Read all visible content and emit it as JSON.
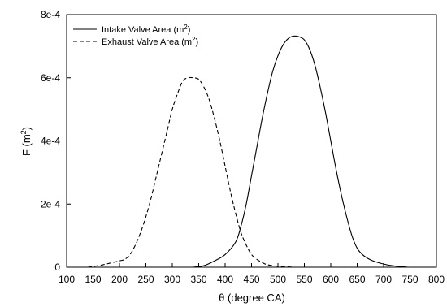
{
  "chart_data": {
    "type": "line",
    "xlabel": "θ (degree CA)",
    "ylabel": {
      "base": "F (m",
      "sup": "2",
      "end": ")"
    },
    "xlim": [
      100,
      800
    ],
    "ylim": [
      0,
      0.0008
    ],
    "xticks": [
      100,
      150,
      200,
      250,
      300,
      350,
      400,
      450,
      500,
      550,
      600,
      650,
      700,
      750,
      800
    ],
    "xtick_labels": [
      "100",
      "150",
      "200",
      "250",
      "300",
      "350",
      "400",
      "450",
      "500",
      "550",
      "600",
      "650",
      "700",
      "750",
      "800"
    ],
    "yticks": [
      0,
      0.0002,
      0.0004,
      0.0006,
      0.0008
    ],
    "ytick_labels": [
      "0",
      "2e-4",
      "4e-4",
      "6e-4",
      "8e-4"
    ],
    "grid": false,
    "legend_position": "top-left",
    "series": [
      {
        "name": {
          "base": "Intake Valve Area (m",
          "sup": "2",
          "end": ")"
        },
        "line_style": "solid",
        "color": "#000000",
        "x": [
          340,
          360,
          380,
          400,
          420,
          430,
          440,
          450,
          460,
          470,
          480,
          490,
          500,
          510,
          520,
          530,
          540,
          550,
          560,
          570,
          580,
          590,
          600,
          610,
          620,
          630,
          640,
          650,
          660,
          670,
          680,
          700,
          720,
          745
        ],
        "y": [
          0,
          5e-06,
          2e-05,
          4e-05,
          8e-05,
          0.00013,
          0.0002,
          0.00029,
          0.00038,
          0.00047,
          0.00055,
          0.00062,
          0.00067,
          0.000705,
          0.000725,
          0.000732,
          0.00073,
          0.00072,
          0.00069,
          0.00064,
          0.00057,
          0.00049,
          0.0004,
          0.00031,
          0.00023,
          0.00016,
          0.0001,
          6e-05,
          4e-05,
          2.8e-05,
          2e-05,
          1e-05,
          4e-06,
          0
        ]
      },
      {
        "name": {
          "base": "Exhaust Valve Area (m",
          "sup": "2",
          "end": ")"
        },
        "line_style": "dashed",
        "color": "#000000",
        "x": [
          140,
          160,
          180,
          200,
          210,
          220,
          230,
          240,
          250,
          260,
          270,
          280,
          290,
          300,
          310,
          320,
          330,
          340,
          350,
          360,
          370,
          380,
          390,
          400,
          410,
          420,
          430,
          440,
          450,
          460,
          470,
          480,
          500,
          530
        ],
        "y": [
          0,
          5e-06,
          1.2e-05,
          2e-05,
          2.5e-05,
          4e-05,
          7e-05,
          0.00011,
          0.00016,
          0.00022,
          0.00029,
          0.00036,
          0.00043,
          0.0005,
          0.00055,
          0.00059,
          0.0006,
          0.0006,
          0.000595,
          0.00057,
          0.00053,
          0.00047,
          0.0004,
          0.00032,
          0.00024,
          0.00017,
          0.00011,
          7e-05,
          4e-05,
          2.5e-05,
          1.5e-05,
          8e-06,
          3e-06,
          0
        ]
      }
    ]
  }
}
